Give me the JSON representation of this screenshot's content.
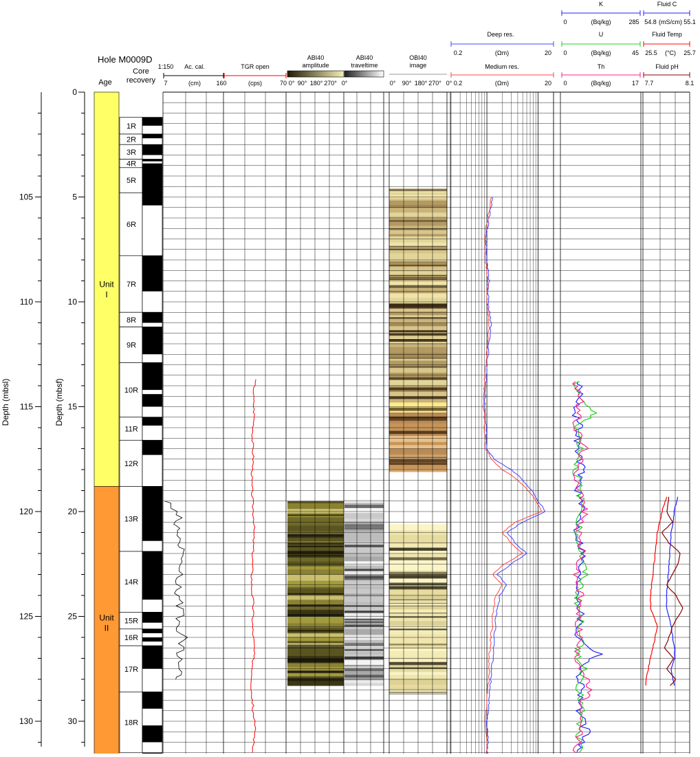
{
  "hole": "Hole M0009D",
  "scale": "1:150",
  "axes": {
    "mbsl_label": "Depth (mbsl)",
    "mbsf_label": "Depth (mbsf)",
    "mbsl_ticks": [
      "105",
      "110",
      "115",
      "120",
      "125",
      "130"
    ],
    "mbsf_ticks": [
      "0",
      "5",
      "10",
      "15",
      "20",
      "25",
      "30"
    ]
  },
  "age": {
    "header": "Age",
    "units": [
      {
        "line1": "Unit",
        "line2": "I",
        "top": 0,
        "bottom": 18.8,
        "color": "#ffff66"
      },
      {
        "line1": "Unit",
        "line2": "II",
        "top": 18.8,
        "bottom": 31.8,
        "color": "#ff9933"
      }
    ]
  },
  "core": {
    "header_line1": "Core",
    "header_line2": "recovery",
    "cores": [
      {
        "label": "1R",
        "top": 1.2,
        "bottom": 2.0
      },
      {
        "label": "2R",
        "top": 2.0,
        "bottom": 2.5
      },
      {
        "label": "3R",
        "top": 2.5,
        "bottom": 3.2
      },
      {
        "label": "4R",
        "top": 3.2,
        "bottom": 3.6
      },
      {
        "label": "5R",
        "top": 3.6,
        "bottom": 4.8
      },
      {
        "label": "6R",
        "top": 4.8,
        "bottom": 7.8
      },
      {
        "label": "7R",
        "top": 7.8,
        "bottom": 10.5
      },
      {
        "label": "8R",
        "top": 10.5,
        "bottom": 11.2
      },
      {
        "label": "9R",
        "top": 11.2,
        "bottom": 12.9
      },
      {
        "label": "10R",
        "top": 12.9,
        "bottom": 15.5
      },
      {
        "label": "11R",
        "top": 15.5,
        "bottom": 16.6
      },
      {
        "label": "12R",
        "top": 16.6,
        "bottom": 18.8
      },
      {
        "label": "13R",
        "top": 18.8,
        "bottom": 21.9
      },
      {
        "label": "14R",
        "top": 21.9,
        "bottom": 24.8
      },
      {
        "label": "15R",
        "top": 24.8,
        "bottom": 25.6
      },
      {
        "label": "16R",
        "top": 25.6,
        "bottom": 26.4
      },
      {
        "label": "17R",
        "top": 26.4,
        "bottom": 28.6
      },
      {
        "label": "18R",
        "top": 28.6,
        "bottom": 31.5
      }
    ],
    "recovered": [
      [
        1.2,
        1.6
      ],
      [
        2.0,
        2.2
      ],
      [
        2.5,
        3.0
      ],
      [
        3.2,
        3.3
      ],
      [
        3.4,
        3.6
      ],
      [
        3.6,
        5.4
      ],
      [
        7.8,
        9.5
      ],
      [
        10.5,
        11.0
      ],
      [
        11.2,
        12.5
      ],
      [
        12.9,
        14.2
      ],
      [
        14.4,
        15.0
      ],
      [
        15.5,
        15.9
      ],
      [
        16.6,
        17.3
      ],
      [
        18.8,
        21.4
      ],
      [
        21.9,
        24.2
      ],
      [
        24.8,
        25.3
      ],
      [
        25.6,
        25.8
      ],
      [
        26.0,
        26.2
      ],
      [
        26.4,
        27.5
      ],
      [
        28.6,
        29.4
      ],
      [
        30.2,
        31.0
      ],
      [
        31.5,
        31.8
      ]
    ]
  },
  "tracks": {
    "accal": {
      "title": "Ac. cal.",
      "min": "7",
      "unit": "(cm)",
      "max": "160",
      "color": "#000000"
    },
    "tgr": {
      "title": "TGR open",
      "unit": "(cps)",
      "max": "70",
      "color": "#ff0000"
    },
    "abi_amp": {
      "title_line1": "ABI40",
      "title_line2": "amplitude",
      "ticks": [
        "0°",
        "90°",
        "180°",
        "270°",
        "0°"
      ]
    },
    "abi_tt": {
      "title_line1": "ABI40",
      "title_line2": "traveltime"
    },
    "obi": {
      "title_line1": "OBI40",
      "title_line2": "image",
      "ticks": [
        "0°",
        "90°",
        "180°",
        "270°",
        "0°"
      ]
    },
    "deep_res": {
      "title": "Deep res.",
      "min": "0.2",
      "unit": "(Ωm)",
      "max": "20",
      "color": "#4444ff"
    },
    "med_res": {
      "title": "Medium res.",
      "min": "0.2",
      "unit": "(Ωm)",
      "max": "20",
      "color": "#ff4444"
    },
    "k": {
      "title": "K",
      "min": "0",
      "unit": "(Bq/kg)",
      "max": "285",
      "color": "#2222ff"
    },
    "u": {
      "title": "U",
      "min": "0",
      "unit": "(Bq/kg)",
      "max": "45",
      "color": "#22cc22"
    },
    "th": {
      "title": "Th",
      "min": "0",
      "unit": "(Bq/kg)",
      "max": "17",
      "color": "#ff2288"
    },
    "fluid_c": {
      "title": "Fluid C",
      "min": "54.8",
      "unit": "(mS/cm)",
      "max": "55.1",
      "color": "#2222ff"
    },
    "fluid_temp": {
      "title": "Fluid Temp",
      "min": "25.5",
      "unit": "(°C)",
      "max": "25.7",
      "color": "#ff0000"
    },
    "fluid_ph": {
      "title": "Fluid pH",
      "min": "7.7",
      "max": "8.1",
      "color": "#880000"
    }
  },
  "chart_data": {
    "type": "line",
    "y_axis": {
      "label": "Depth (mbsf)",
      "range": [
        0,
        31.8
      ],
      "inverted": true
    },
    "y_axis_secondary": {
      "label": "Depth (mbsl)",
      "offset": 100
    },
    "series": [
      {
        "name": "Ac. cal.",
        "unit": "cm",
        "range": [
          7,
          160
        ],
        "depth": [
          19.5,
          19.7,
          20.0,
          20.3,
          20.6,
          20.8,
          21.0,
          21.3,
          21.6,
          21.8,
          22.1,
          22.4,
          22.7,
          23.0,
          23.3,
          23.6,
          23.9,
          24.2,
          24.5,
          24.8,
          25.1,
          25.4,
          25.7,
          26.0,
          26.3,
          26.6,
          26.9,
          27.2,
          27.5,
          27.8,
          28.0
        ],
        "value": [
          12,
          25,
          33,
          45,
          36,
          44,
          40,
          52,
          43,
          55,
          46,
          52,
          44,
          57,
          40,
          50,
          42,
          55,
          48,
          60,
          44,
          52,
          40,
          58,
          44,
          52,
          38,
          50,
          42,
          46,
          38
        ]
      },
      {
        "name": "TGR open",
        "unit": "cps",
        "range": [
          0,
          70
        ],
        "depth": [
          13.7,
          14.5,
          15.5,
          16.5,
          17.5,
          18.5,
          19.5,
          20.5,
          21.5,
          22.5,
          23.5,
          24.5,
          25.5,
          26.5,
          27.5,
          28.5,
          29.5,
          30.5,
          31.5
        ],
        "value": [
          35,
          33,
          34,
          32,
          33,
          31,
          32,
          34,
          33,
          32,
          31,
          33,
          32,
          34,
          32,
          31,
          33,
          35,
          32
        ]
      },
      {
        "name": "Deep res.",
        "unit": "Ωm",
        "range": [
          0.2,
          20
        ],
        "scale": "log",
        "depth": [
          5.0,
          6.0,
          7.0,
          8.0,
          9.0,
          10.0,
          11.0,
          12.0,
          13.0,
          14.0,
          15.0,
          16.0,
          17.0,
          17.5,
          18.0,
          18.5,
          19.0,
          19.5,
          20.0,
          20.5,
          21.0,
          21.5,
          22.0,
          22.5,
          23.0,
          23.5,
          24.0,
          25.0,
          26.0,
          27.0,
          28.0,
          29.0,
          30.0,
          31.0,
          31.8
        ],
        "value": [
          1.3,
          1.1,
          0.95,
          1.0,
          1.1,
          1.05,
          1.2,
          1.1,
          1.0,
          0.95,
          0.9,
          0.95,
          1.0,
          1.4,
          3.0,
          5.0,
          7.5,
          10,
          14,
          5,
          2.5,
          3.5,
          6,
          3,
          1.6,
          2.5,
          1.8,
          1.5,
          1.4,
          1.3,
          1.2,
          1.1,
          1.0,
          1.05,
          1.0
        ]
      },
      {
        "name": "Medium res.",
        "unit": "Ωm",
        "range": [
          0.2,
          20
        ],
        "scale": "log",
        "depth": [
          5.0,
          6.0,
          7.0,
          8.0,
          9.0,
          10.0,
          11.0,
          12.0,
          13.0,
          14.0,
          15.0,
          16.0,
          17.0,
          17.5,
          18.0,
          18.5,
          19.0,
          19.5,
          20.0,
          20.5,
          21.0,
          21.5,
          22.0,
          22.5,
          23.0,
          23.5,
          24.0,
          25.0,
          26.0,
          27.0,
          28.0,
          29.0,
          30.0,
          31.0,
          31.8
        ],
        "value": [
          1.2,
          1.05,
          0.9,
          0.95,
          1.05,
          1.0,
          1.1,
          1.05,
          0.95,
          0.9,
          0.85,
          0.9,
          0.95,
          1.2,
          2.0,
          4.0,
          6.5,
          9,
          12,
          3.5,
          2.0,
          3.0,
          5,
          2.2,
          1.3,
          2.0,
          1.5,
          1.3,
          1.2,
          1.1,
          1.1,
          1.0,
          0.95,
          1.0,
          0.95
        ]
      },
      {
        "name": "K",
        "unit": "Bq/kg",
        "range": [
          0,
          285
        ],
        "depth": [
          13.8,
          14.5,
          15.3,
          16.0,
          17.0,
          18.0,
          19.0,
          20.0,
          21.0,
          22.0,
          23.0,
          24.0,
          25.0,
          26.0,
          26.8,
          27.5,
          28.5,
          29.5,
          30.5,
          31.5
        ],
        "value": [
          60,
          70,
          50,
          65,
          55,
          75,
          60,
          70,
          55,
          80,
          60,
          65,
          70,
          55,
          140,
          60,
          75,
          60,
          90,
          55
        ]
      },
      {
        "name": "U",
        "unit": "Bq/kg",
        "range": [
          0,
          45
        ],
        "depth": [
          13.8,
          14.5,
          15.3,
          16.0,
          17.0,
          18.0,
          19.0,
          20.0,
          21.0,
          22.0,
          23.0,
          24.0,
          25.0,
          26.0,
          26.8,
          27.5,
          28.5,
          29.5,
          30.5,
          31.5
        ],
        "value": [
          8,
          10,
          18,
          9,
          11,
          8,
          10,
          12,
          9,
          11,
          13,
          9,
          10,
          12,
          9,
          13,
          10,
          11,
          9,
          10
        ]
      },
      {
        "name": "Th",
        "unit": "Bq/kg",
        "range": [
          0,
          17
        ],
        "depth": [
          13.8,
          14.5,
          15.3,
          16.0,
          17.0,
          18.0,
          19.0,
          20.0,
          21.0,
          22.0,
          23.0,
          24.0,
          25.0,
          26.0,
          26.8,
          27.5,
          28.5,
          29.5,
          30.5,
          31.5
        ],
        "value": [
          3,
          4,
          3.5,
          3,
          5,
          3,
          4,
          5,
          3.5,
          4.5,
          3,
          4,
          3.5,
          4,
          3,
          4.5,
          6,
          3.5,
          4,
          3
        ]
      },
      {
        "name": "Fluid C",
        "unit": "mS/cm",
        "range": [
          54.8,
          55.1
        ],
        "depth": [
          19.3,
          20.0,
          21.0,
          22.0,
          23.0,
          24.0,
          24.6,
          25.5,
          26.0,
          26.5,
          27.0,
          27.5,
          28.0,
          28.3
        ],
        "value": [
          55.02,
          55.0,
          54.98,
          54.97,
          54.96,
          54.95,
          54.95,
          54.98,
          54.99,
          55.0,
          55.0,
          54.98,
          54.99,
          55.0
        ]
      },
      {
        "name": "Fluid Temp",
        "unit": "°C",
        "range": [
          25.5,
          25.7
        ],
        "depth": [
          19.3,
          20.0,
          21.0,
          22.0,
          23.0,
          24.0,
          24.6,
          25.5,
          26.0,
          26.5,
          27.0,
          27.5,
          28.0,
          28.3
        ],
        "value": [
          25.6,
          25.58,
          25.56,
          25.55,
          25.54,
          25.53,
          25.53,
          25.56,
          25.55,
          25.54,
          25.53,
          25.52,
          25.51,
          25.51
        ]
      },
      {
        "name": "Fluid pH",
        "range": [
          7.7,
          8.1
        ],
        "depth": [
          19.3,
          20.0,
          20.5,
          21.0,
          21.5,
          22.0,
          22.5,
          23.0,
          23.5,
          24.0,
          24.6,
          25.5,
          26.0,
          26.5,
          27.0,
          27.5,
          28.0,
          28.3
        ],
        "value": [
          7.92,
          7.9,
          7.95,
          7.86,
          7.92,
          8.02,
          8.0,
          7.95,
          7.9,
          7.98,
          8.04,
          7.95,
          7.92,
          7.88,
          7.96,
          7.9,
          7.98,
          7.93
        ]
      }
    ]
  }
}
